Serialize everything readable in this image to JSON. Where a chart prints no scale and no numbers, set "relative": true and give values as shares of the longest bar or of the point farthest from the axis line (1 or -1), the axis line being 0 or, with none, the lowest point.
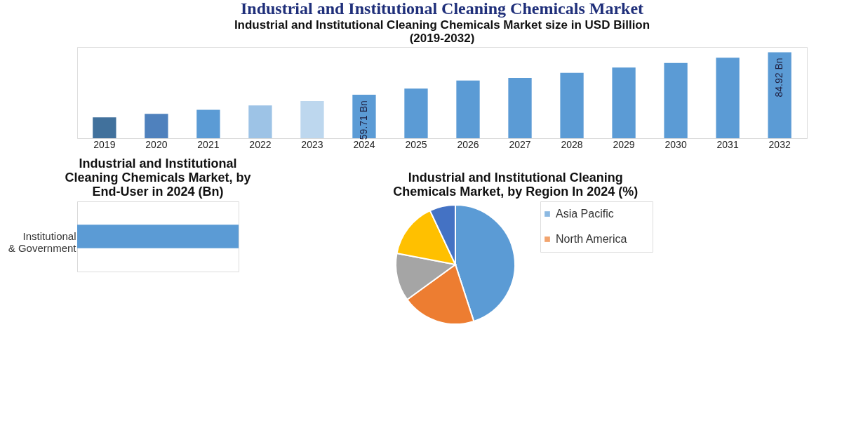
{
  "chart_data": [
    {
      "type": "bar",
      "title": "Industrial and Institutional Cleaning Chemicals Market",
      "subtitle": "Industrial and Institutional Cleaning Chemicals Market size in USD Billion (2019-2032)",
      "categories": [
        "2019",
        "2020",
        "2021",
        "2022",
        "2023",
        "2024",
        "2025",
        "2026",
        "2027",
        "2028",
        "2029",
        "2030",
        "2031",
        "2032"
      ],
      "values": [
        46.4,
        48.4,
        50.8,
        53.4,
        56.0,
        59.71,
        63.4,
        68.2,
        69.7,
        72.7,
        75.8,
        78.6,
        81.7,
        84.92
      ],
      "colors": [
        "#41719c",
        "#4f81bd",
        "#5b9bd5",
        "#9dc3e6",
        "#bdd7ee",
        "#5b9bd5",
        "#5b9bd5",
        "#5b9bd5",
        "#5b9bd5",
        "#5b9bd5",
        "#5b9bd5",
        "#5b9bd5",
        "#5b9bd5",
        "#5b9bd5"
      ],
      "value_labels": [
        null,
        null,
        null,
        null,
        null,
        "59.71 Bn",
        null,
        null,
        null,
        null,
        null,
        null,
        null,
        "84.92 Bn"
      ],
      "ylim": [
        34,
        88
      ],
      "tick_labels": "x",
      "grid": false,
      "legend": false
    },
    {
      "type": "bar",
      "orientation": "horizontal",
      "relative": true,
      "title": "Industrial and Institutional Cleaning Chemicals Market, by End-User in 2024 (Bn)",
      "categories": [
        "Institutional & Government"
      ],
      "values": [
        1
      ],
      "colors": [
        "#5b9bd5"
      ],
      "legend": false
    },
    {
      "type": "pie",
      "title": "Industrial and Institutional Cleaning Chemicals Market, by Region In 2024 (%)",
      "categories": [
        "Asia Pacific",
        "North America",
        null,
        null,
        null
      ],
      "values": [
        45,
        20,
        13,
        15,
        7
      ],
      "colors": [
        "#5b9bd5",
        "#ed7d31",
        "#a5a5a5",
        "#ffc000",
        "#4472c4"
      ],
      "legend": "right"
    }
  ]
}
